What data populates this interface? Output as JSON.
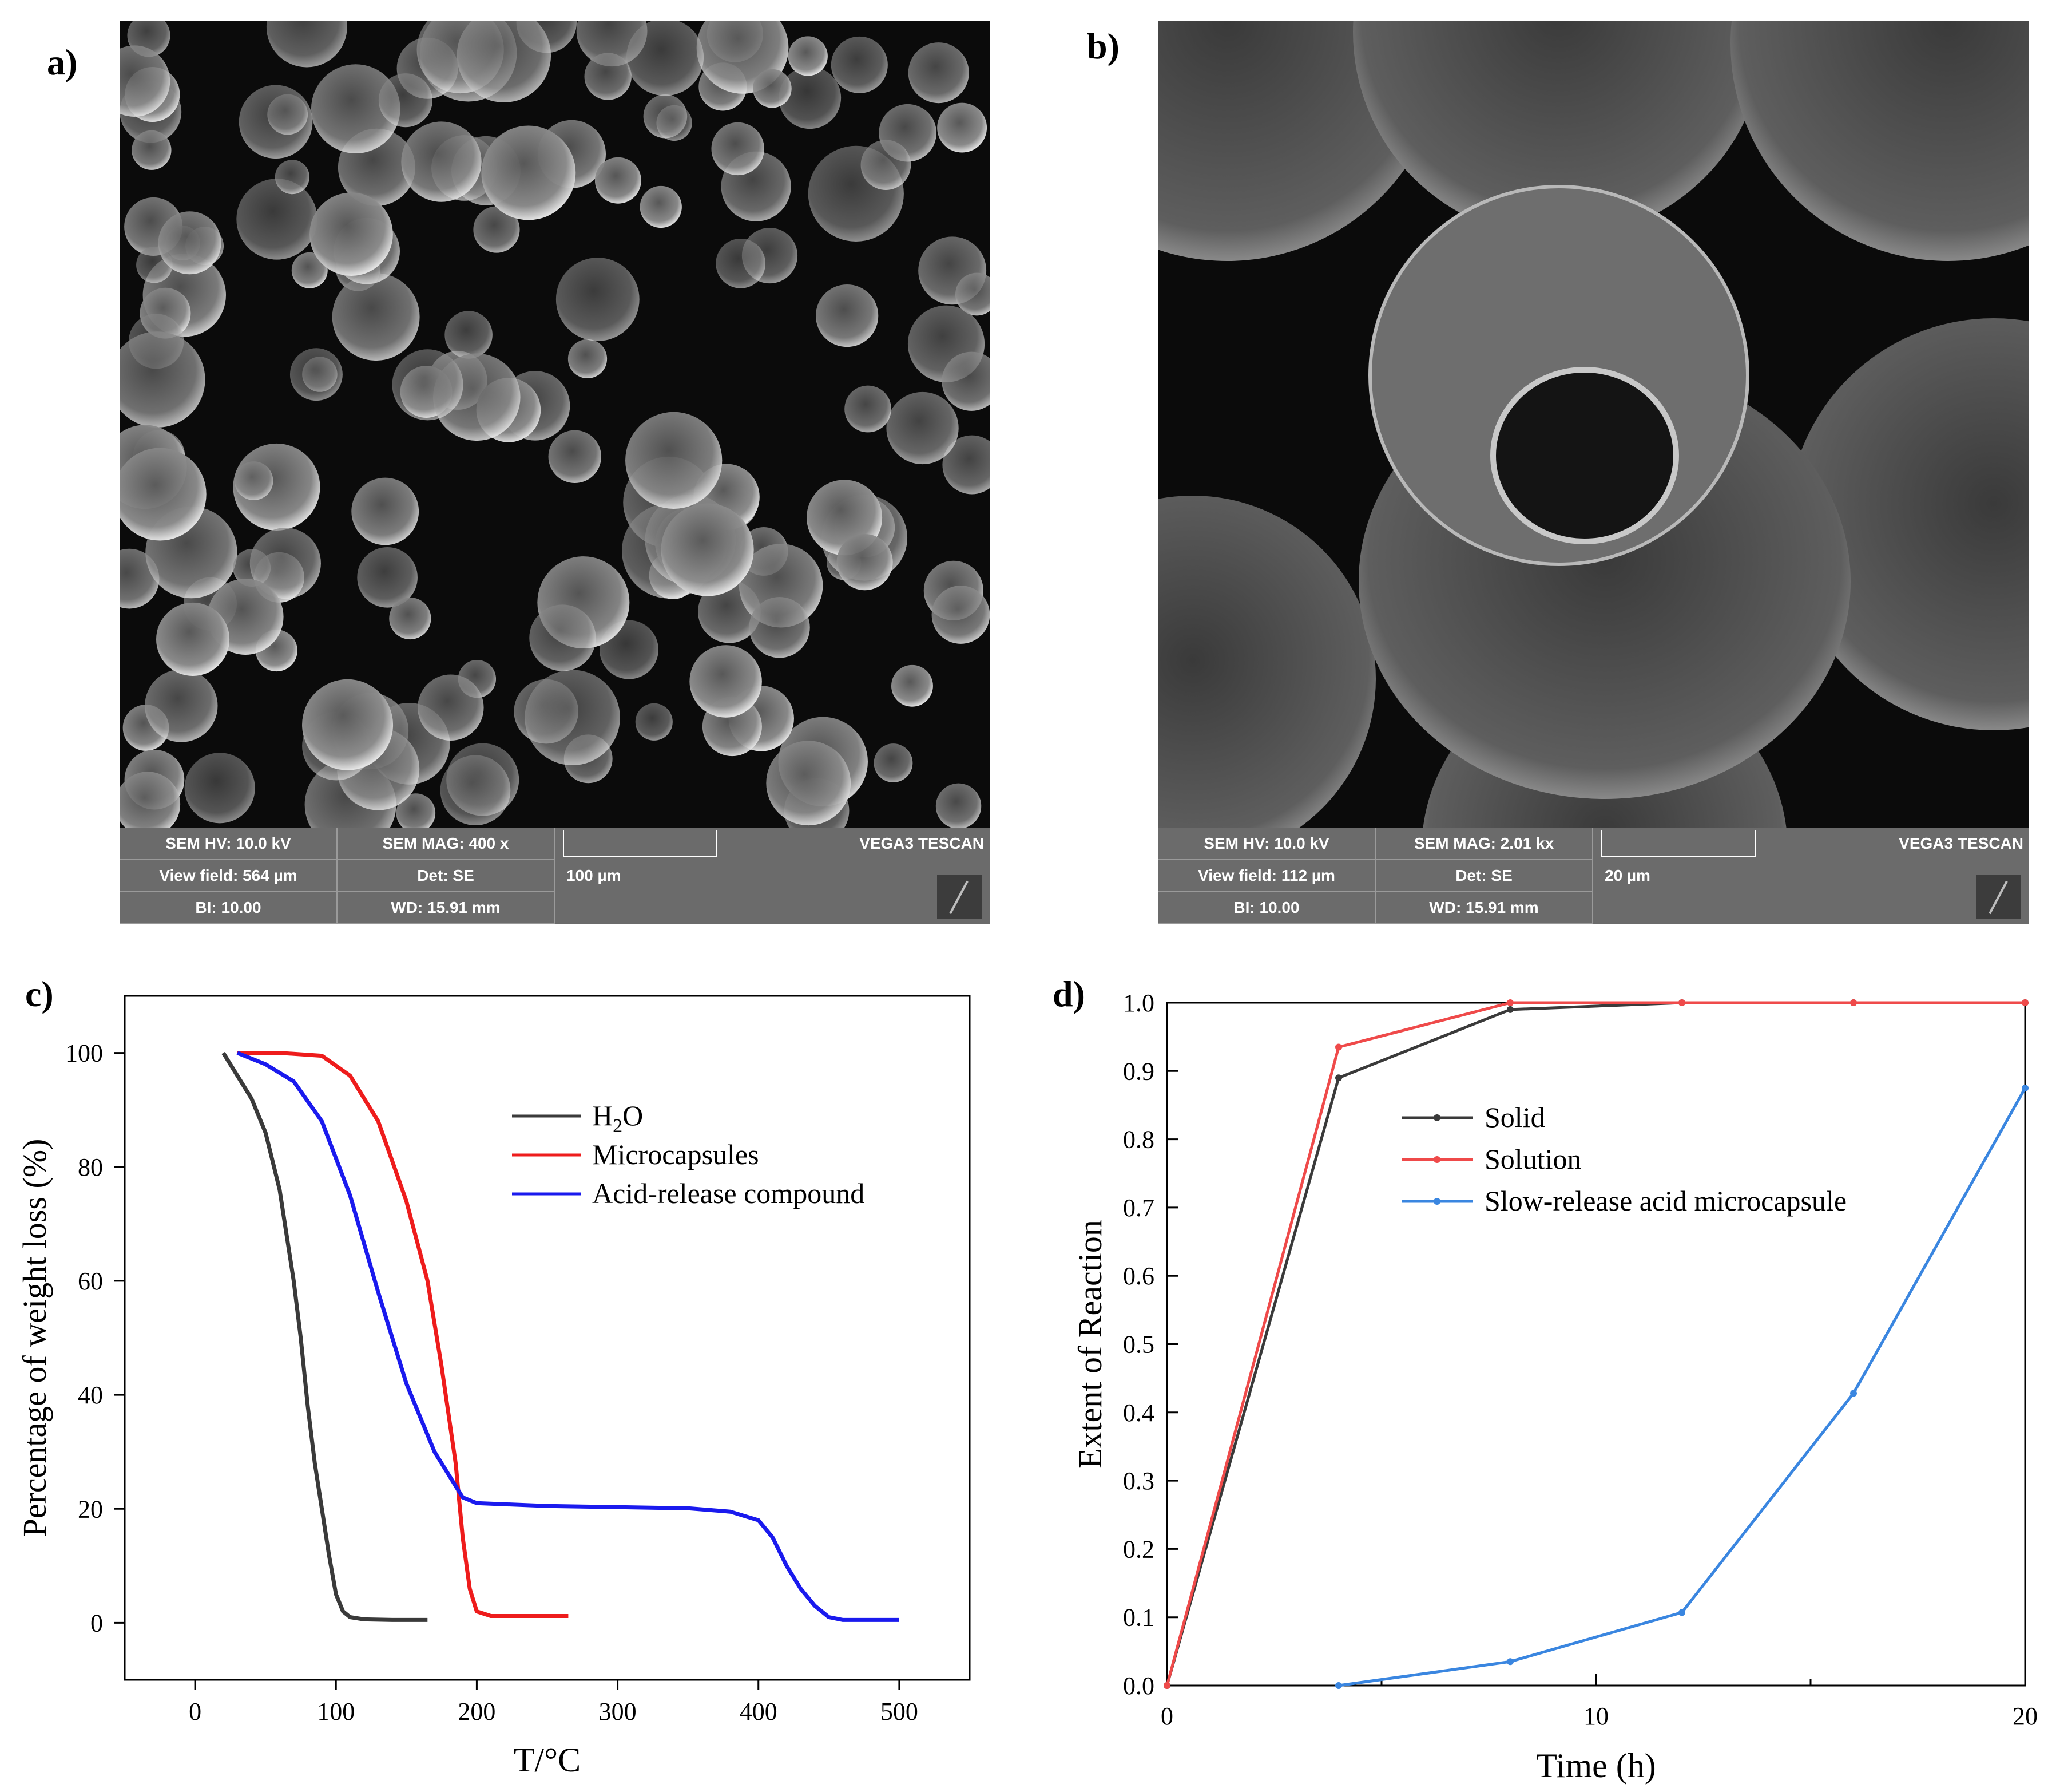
{
  "panel_labels": [
    "a)",
    "b)",
    "c)",
    "d)"
  ],
  "sem_a": {
    "hv": "SEM HV: 10.0 kV",
    "mag": "SEM MAG: 400 x",
    "view_field": "View field: 564 µm",
    "det": "Det: SE",
    "bi": "BI: 10.00",
    "wd": "WD: 15.91 mm",
    "scale": "100 µm",
    "brand": "VEGA3 TESCAN"
  },
  "sem_b": {
    "hv": "SEM HV: 10.0 kV",
    "mag": "SEM MAG: 2.01 kx",
    "view_field": "View field: 112 µm",
    "det": "Det: SE",
    "bi": "BI: 10.00",
    "wd": "WD: 15.91 mm",
    "scale": "20 µm",
    "brand": "VEGA3 TESCAN"
  },
  "chart_data": [
    {
      "type": "line",
      "panel": "c)",
      "xlabel": "T/°C",
      "ylabel": "Percentage of weight loss (%)",
      "xlim": [
        -50,
        550
      ],
      "ylim": [
        -10,
        110
      ],
      "xticks": [
        0,
        100,
        200,
        300,
        400,
        500
      ],
      "yticks": [
        0,
        20,
        40,
        60,
        80,
        100
      ],
      "legend_position": "upper-right",
      "series": [
        {
          "name": "H2O",
          "legend_text": "H",
          "legend_sub": "2",
          "legend_after": "O",
          "color": "#3a3a3a",
          "x": [
            20,
            30,
            40,
            50,
            60,
            70,
            75,
            80,
            85,
            90,
            95,
            100,
            105,
            110,
            120,
            140,
            165
          ],
          "y": [
            100,
            96,
            92,
            86,
            76,
            60,
            50,
            38,
            28,
            20,
            12,
            5,
            2,
            1,
            0.6,
            0.5,
            0.5
          ]
        },
        {
          "name": "Microcapsules",
          "color": "#ee1c1c",
          "x": [
            30,
            60,
            90,
            110,
            130,
            150,
            165,
            175,
            185,
            190,
            195,
            200,
            210,
            230,
            265
          ],
          "y": [
            100,
            100,
            99.5,
            96,
            88,
            74,
            60,
            45,
            28,
            15,
            6,
            2,
            1.2,
            1.2,
            1.2
          ]
        },
        {
          "name": "Acid-release compound",
          "color": "#1a1aee",
          "x": [
            30,
            50,
            70,
            90,
            110,
            130,
            150,
            170,
            190,
            200,
            250,
            300,
            350,
            380,
            400,
            410,
            420,
            430,
            440,
            450,
            460,
            500
          ],
          "y": [
            100,
            98,
            95,
            88,
            75,
            58,
            42,
            30,
            22,
            21,
            20.5,
            20.3,
            20.1,
            19.5,
            18,
            15,
            10,
            6,
            3,
            1,
            0.5,
            0.5
          ]
        }
      ]
    },
    {
      "type": "line",
      "panel": "d)",
      "xlabel": "Time (h)",
      "ylabel": "Extent of Reaction",
      "xlim": [
        0,
        20
      ],
      "ylim": [
        0,
        1.0
      ],
      "xticks": [
        0,
        10,
        20
      ],
      "yticks": [
        0.0,
        0.1,
        0.2,
        0.3,
        0.4,
        0.5,
        0.6,
        0.7,
        0.8,
        0.9,
        1.0
      ],
      "legend_position": "center",
      "series": [
        {
          "name": "Solid",
          "color": "#3a3a3a",
          "x": [
            0,
            4,
            8,
            12,
            16,
            20
          ],
          "y": [
            0,
            0.89,
            0.99,
            1.0,
            1.0,
            1.0
          ]
        },
        {
          "name": "Solution",
          "color": "#ef4a4a",
          "x": [
            0,
            4,
            8,
            12,
            16,
            20
          ],
          "y": [
            0,
            0.935,
            1.0,
            1.0,
            1.0,
            1.0
          ]
        },
        {
          "name": "Slow-release acid microcapsule",
          "color": "#3a86e0",
          "x": [
            4,
            8,
            12,
            16,
            20
          ],
          "y": [
            0,
            0.035,
            0.107,
            0.428,
            0.875
          ]
        }
      ]
    }
  ]
}
